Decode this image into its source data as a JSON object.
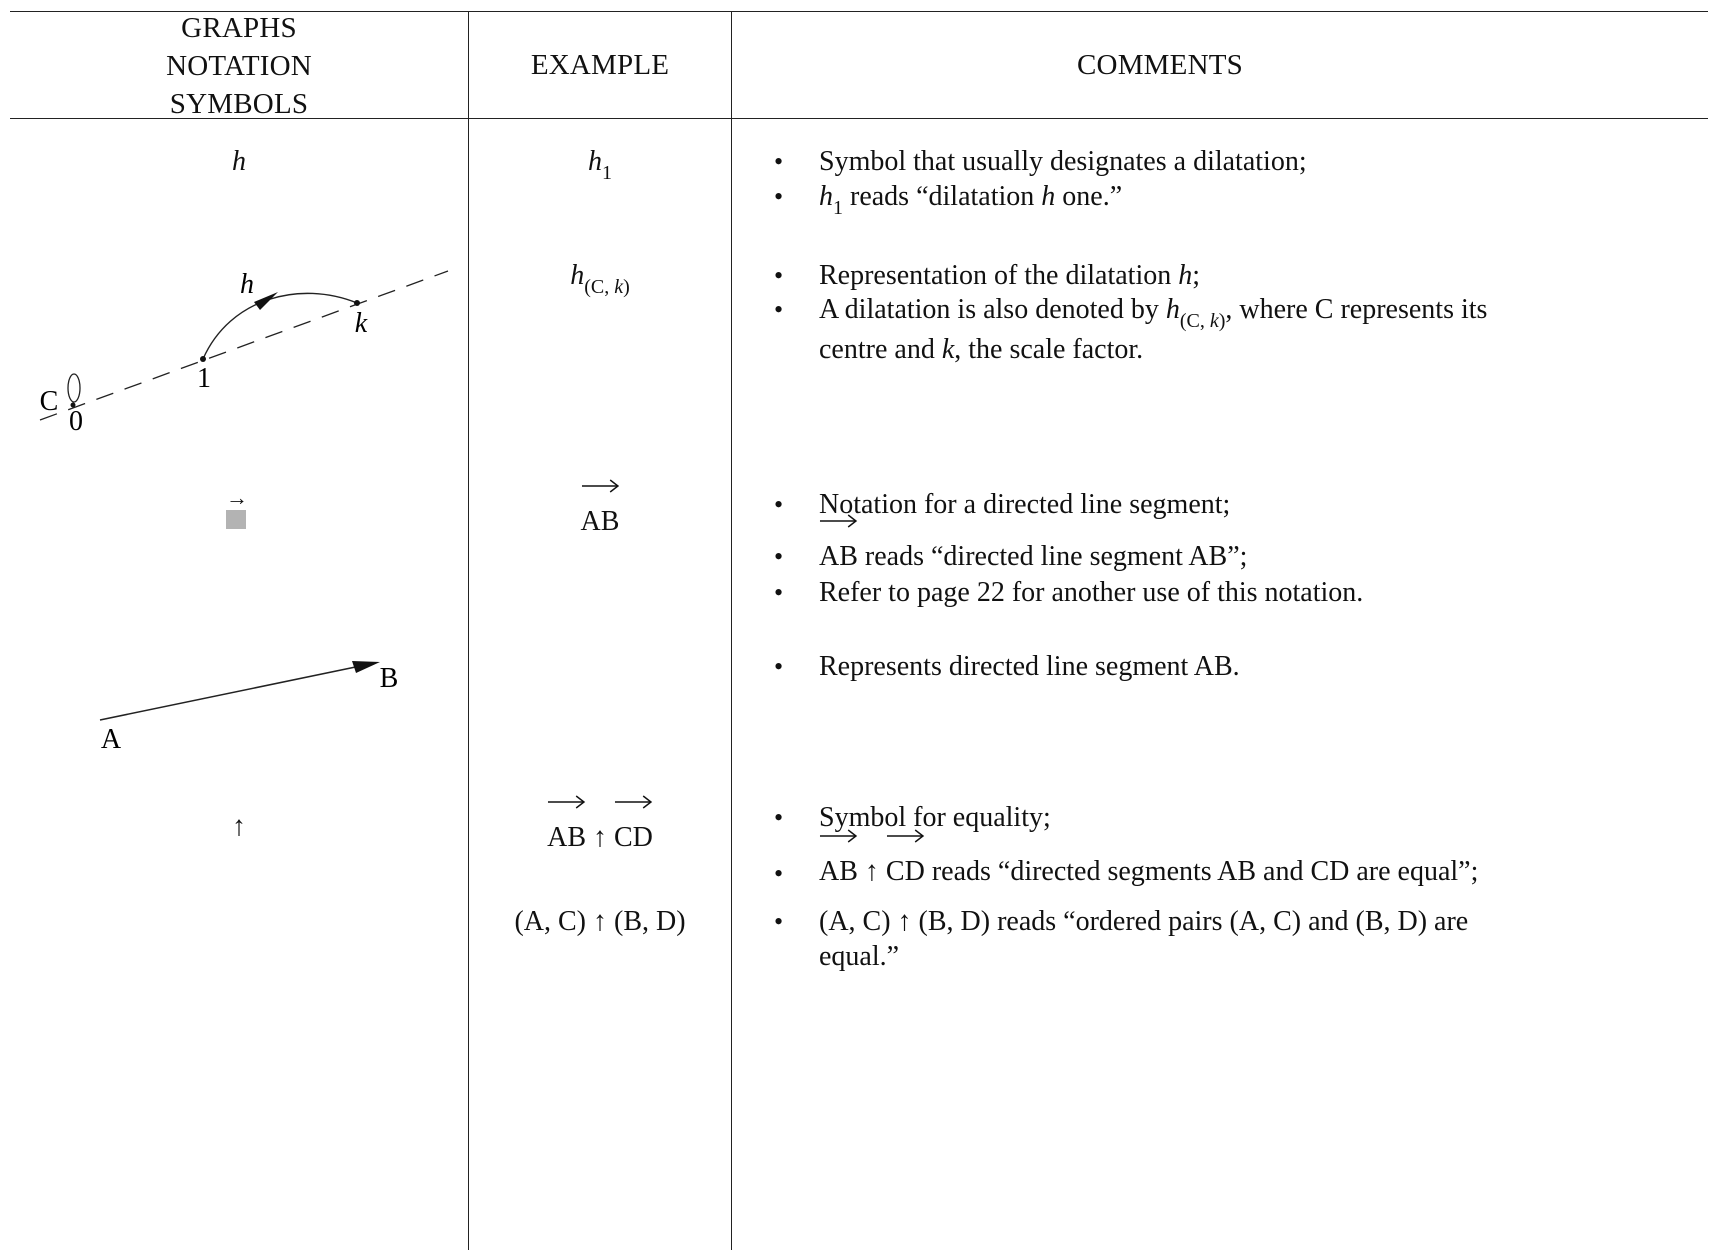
{
  "headers": {
    "graphs_line1": "GRAPHS",
    "graphs_line2": "NOTATION",
    "graphs_line3": "SYMBOLS",
    "example": "EXAMPLE",
    "comments": "COMMENTS"
  },
  "rows": [
    {
      "symbol": "h",
      "example_base": "h",
      "example_sub": "1",
      "comments": [
        {
          "text": "Symbol that usually designates a dilatation;"
        },
        {
          "pre_base": "h",
          "pre_sub": "1",
          "text_a": " reads “dilatation ",
          "ital": "h",
          "text_b": " one.”"
        }
      ]
    },
    {
      "diagram_labels": {
        "h": "h",
        "k": "k",
        "one": "1",
        "c": "C",
        "zero": "0"
      },
      "example_base": "h",
      "example_sub_a": "(C, ",
      "example_sub_k": "k",
      "example_sub_b": ")",
      "comments": [
        {
          "text_a": "Representation of the dilatation ",
          "ital": "h",
          "text_b": ";"
        },
        {
          "text_a": "A dilatation is also denoted by ",
          "base": "h",
          "sub_a": "(C, ",
          "sub_k": "k",
          "sub_b": ")",
          "text_b": ", where C represents its"
        },
        {
          "text_a": "centre and ",
          "ital": "k",
          "text_b": ", the scale factor."
        }
      ]
    },
    {
      "example": "AB",
      "comments": [
        {
          "text": "Notation for a directed line segment;"
        },
        {
          "vec": "AB",
          "text": " reads “directed line segment AB”;"
        },
        {
          "text": "Refer to page 22 for another use of this notation."
        }
      ]
    },
    {
      "diagram_labels": {
        "a": "A",
        "b": "B"
      },
      "comments": [
        {
          "text": "Represents directed line segment AB."
        }
      ]
    },
    {
      "symbol": "↑",
      "example1_left": "AB",
      "example1_op": " ↑ ",
      "example1_right": "CD",
      "example2": "(A, C) ↑ (B, D)",
      "comments": [
        {
          "text": "Symbol for equality;"
        },
        {
          "vec_a": "AB",
          "op": " ↑ ",
          "vec_b": "CD",
          "text": " reads “directed segments AB and CD are equal”;"
        },
        {
          "text": "(A, C) ↑ (B, D) reads “ordered pairs (A, C) and (B, D) are"
        },
        {
          "text": "equal.”"
        }
      ]
    }
  ],
  "bullet_char": "•",
  "vec_symbol_arrow": "→",
  "colors": {
    "placeholder_square": "#b3b3b3",
    "rule": "#222222"
  }
}
